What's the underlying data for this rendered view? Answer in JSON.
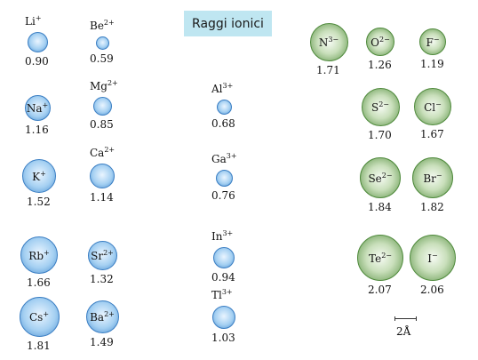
{
  "title": "Raggi ionici",
  "scale_label": "2Å",
  "colors": {
    "cation": "#4a8fd0",
    "anion": "#5d9049",
    "title_bg": "#bfe6f1"
  },
  "ions": [
    {
      "symbol": "Li",
      "charge": "+",
      "radius": "0.90",
      "kind": "cation"
    },
    {
      "symbol": "Be",
      "charge": "2+",
      "radius": "0.59",
      "kind": "cation"
    },
    {
      "symbol": "Na",
      "charge": "+",
      "radius": "1.16",
      "kind": "cation"
    },
    {
      "symbol": "Mg",
      "charge": "2+",
      "radius": "0.85",
      "kind": "cation"
    },
    {
      "symbol": "K",
      "charge": "+",
      "radius": "1.52",
      "kind": "cation"
    },
    {
      "symbol": "Ca",
      "charge": "2+",
      "radius": "1.14",
      "kind": "cation"
    },
    {
      "symbol": "Rb",
      "charge": "+",
      "radius": "1.66",
      "kind": "cation"
    },
    {
      "symbol": "Sr",
      "charge": "2+",
      "radius": "1.32",
      "kind": "cation"
    },
    {
      "symbol": "Cs",
      "charge": "+",
      "radius": "1.81",
      "kind": "cation"
    },
    {
      "symbol": "Ba",
      "charge": "2+",
      "radius": "1.49",
      "kind": "cation"
    },
    {
      "symbol": "Al",
      "charge": "3+",
      "radius": "0.68",
      "kind": "cation"
    },
    {
      "symbol": "Ga",
      "charge": "3+",
      "radius": "0.76",
      "kind": "cation"
    },
    {
      "symbol": "In",
      "charge": "3+",
      "radius": "0.94",
      "kind": "cation"
    },
    {
      "symbol": "Tl",
      "charge": "3+",
      "radius": "1.03",
      "kind": "cation"
    },
    {
      "symbol": "N",
      "charge": "3−",
      "radius": "1.71",
      "kind": "anion"
    },
    {
      "symbol": "O",
      "charge": "2−",
      "radius": "1.26",
      "kind": "anion"
    },
    {
      "symbol": "F",
      "charge": "−",
      "radius": "1.19",
      "kind": "anion"
    },
    {
      "symbol": "S",
      "charge": "2−",
      "radius": "1.70",
      "kind": "anion"
    },
    {
      "symbol": "Cl",
      "charge": "−",
      "radius": "1.67",
      "kind": "anion"
    },
    {
      "symbol": "Se",
      "charge": "2−",
      "radius": "1.84",
      "kind": "anion"
    },
    {
      "symbol": "Br",
      "charge": "−",
      "radius": "1.82",
      "kind": "anion"
    },
    {
      "symbol": "Te",
      "charge": "2−",
      "radius": "2.07",
      "kind": "anion"
    },
    {
      "symbol": "I",
      "charge": "−",
      "radius": "2.06",
      "kind": "anion"
    }
  ]
}
